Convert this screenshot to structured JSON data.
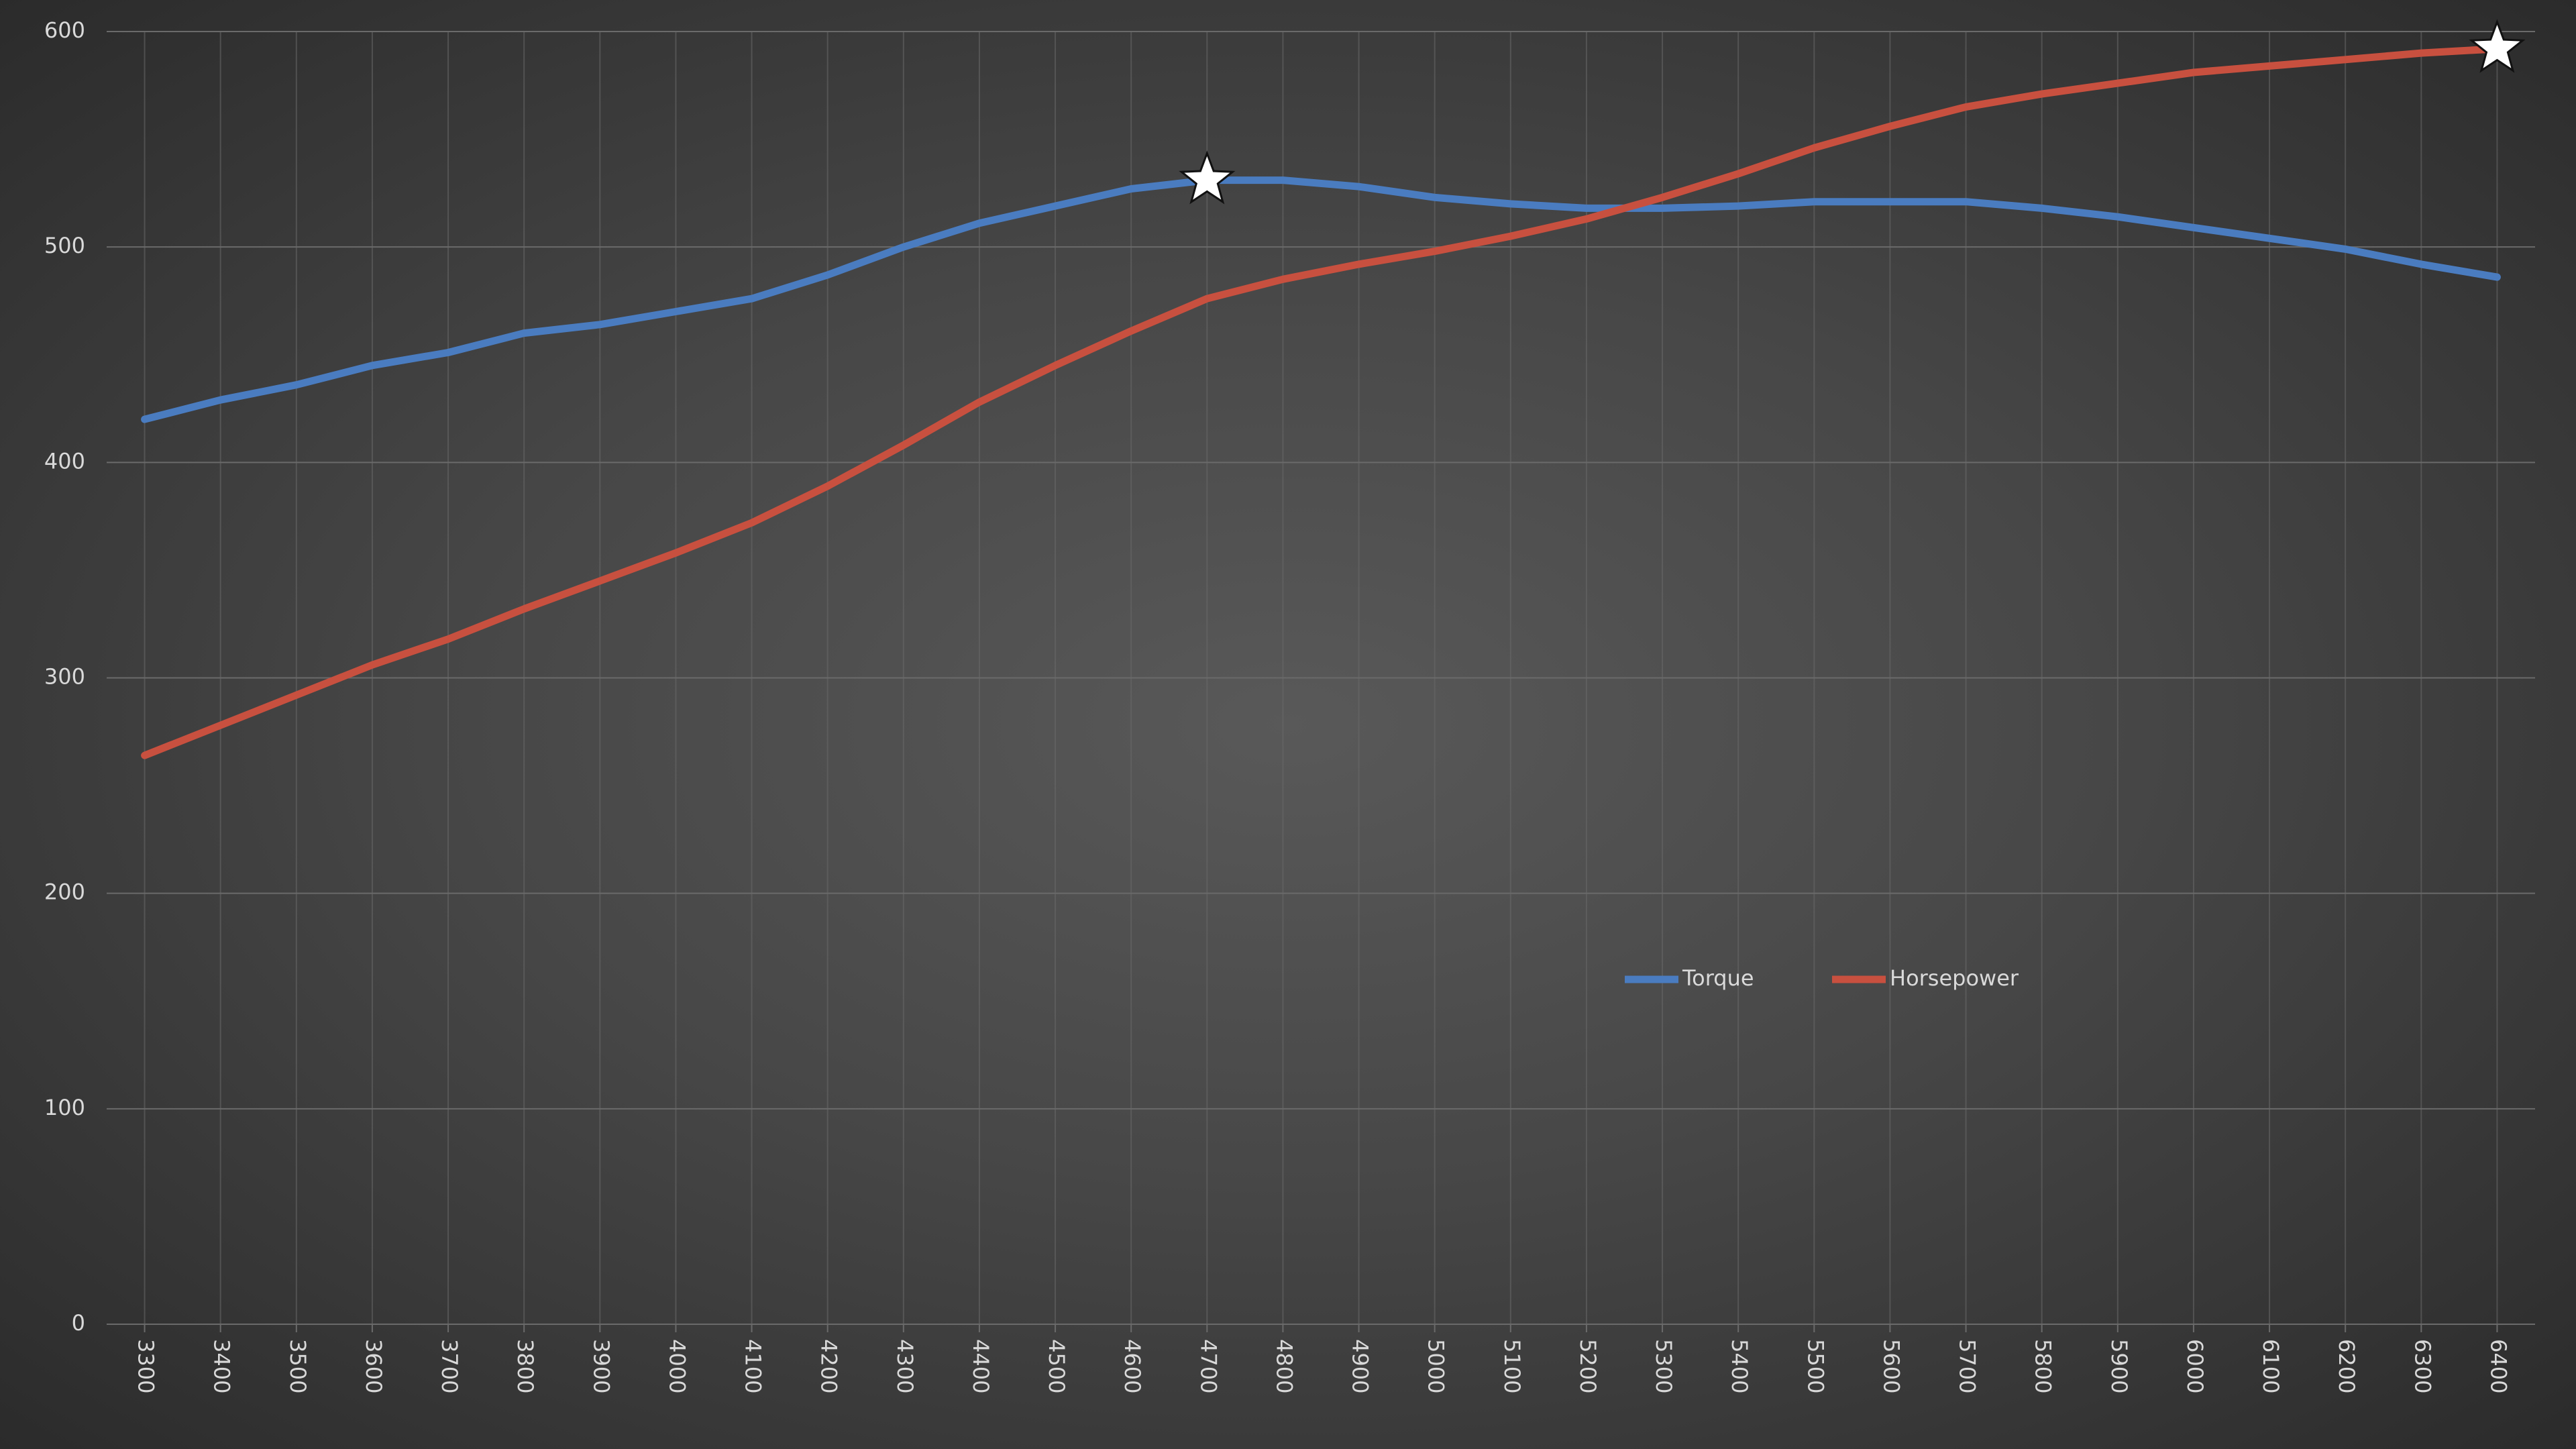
{
  "chart_data": {
    "type": "line",
    "x": [
      3300,
      3400,
      3500,
      3600,
      3700,
      3800,
      3900,
      4000,
      4100,
      4200,
      4300,
      4400,
      4500,
      4600,
      4700,
      4800,
      4900,
      5000,
      5100,
      5200,
      5300,
      5400,
      5500,
      5600,
      5700,
      5800,
      5900,
      6000,
      6100,
      6200,
      6300,
      6400
    ],
    "series": [
      {
        "name": "Torque",
        "color": "#4a7cc0",
        "values": [
          420,
          429,
          436,
          445,
          451,
          460,
          464,
          470,
          476,
          487,
          500,
          511,
          519,
          527,
          531,
          531,
          528,
          523,
          520,
          518,
          518,
          519,
          521,
          521,
          521,
          518,
          514,
          509,
          504,
          499,
          492,
          486
        ]
      },
      {
        "name": "Horsepower",
        "color": "#c8503f",
        "values": [
          264,
          278,
          292,
          306,
          318,
          332,
          345,
          358,
          372,
          389,
          408,
          428,
          445,
          461,
          476,
          485,
          492,
          498,
          505,
          513,
          523,
          534,
          546,
          556,
          565,
          571,
          576,
          581,
          584,
          587,
          590,
          592
        ]
      }
    ],
    "xlim": [
      3250,
      6450
    ],
    "xticks": [
      3300,
      3400,
      3500,
      3600,
      3700,
      3800,
      3900,
      4000,
      4100,
      4200,
      4300,
      4400,
      4500,
      4600,
      4700,
      4800,
      4900,
      5000,
      5100,
      5200,
      5300,
      5400,
      5500,
      5600,
      5700,
      5800,
      5900,
      6000,
      6100,
      6200,
      6300,
      6400
    ],
    "ylim": [
      0,
      600
    ],
    "yticks": [
      0,
      100,
      200,
      300,
      400,
      500,
      600
    ],
    "grid": true,
    "peak_marker": "star",
    "legend": "center-right"
  }
}
